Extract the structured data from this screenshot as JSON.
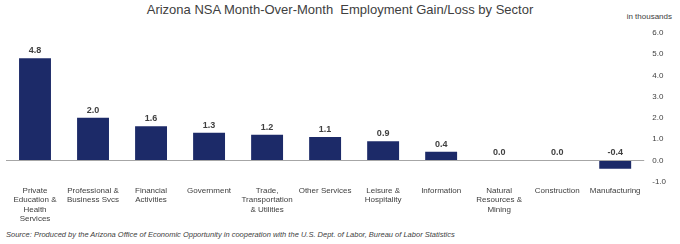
{
  "chart_data": {
    "type": "bar",
    "title": "Arizona NSA Month-Over-Month  Employment Gain/Loss by Sector",
    "y_label": "in thousands",
    "source": "Source: Produced by the Arizona Office of Economic Opportunity in cooperation with the U.S. Dept. of Labor, Bureau of Labor Statistics",
    "categories": [
      "Private Education & Health Services",
      "Professional & Business Svcs",
      "Financial Activities",
      "Government",
      "Trade, Transportation & Utilities",
      "Other Services",
      "Leisure & Hospitality",
      "Information",
      "Natural Resources & Mining",
      "Construction",
      "Manufacturing"
    ],
    "values": [
      4.8,
      2.0,
      1.6,
      1.3,
      1.2,
      1.1,
      0.9,
      0.4,
      0.0,
      0.0,
      -0.4
    ],
    "value_labels": [
      "4.8",
      "2.0",
      "1.6",
      "1.3",
      "1.2",
      "1.1",
      "0.9",
      "0.4",
      "0.0",
      "0.0",
      "-0.4"
    ],
    "data_labels": true,
    "color": "#1c2a68",
    "ylim": [
      -1,
      6
    ],
    "yticks": [
      {
        "value": -1,
        "label": "-1.0"
      },
      {
        "value": 0,
        "label": "0.0"
      },
      {
        "value": 1,
        "label": "1.0"
      },
      {
        "value": 2,
        "label": "2.0"
      },
      {
        "value": 3,
        "label": "3.0"
      },
      {
        "value": 4,
        "label": "4.0"
      },
      {
        "value": 5,
        "label": "5.0"
      },
      {
        "value": 6,
        "label": "6.0"
      }
    ],
    "grid": false
  }
}
